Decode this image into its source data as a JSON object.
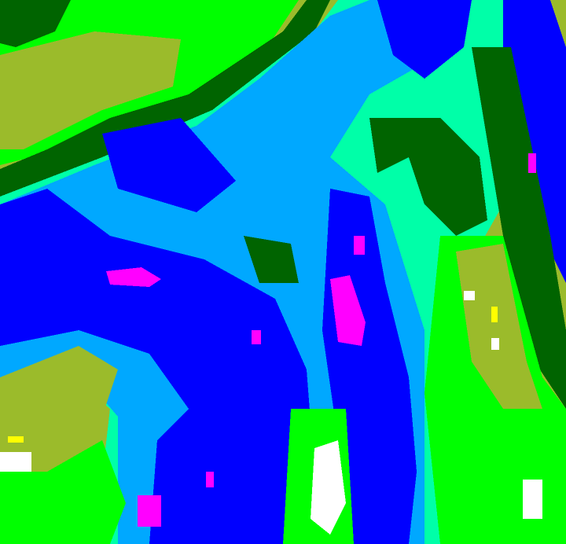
{
  "map": {
    "kind": "false-color raster",
    "palette": {
      "olive": "#9bbb2b",
      "dark_green": "#006400",
      "green": "#00ff00",
      "aqua_green": "#00ffa8",
      "light_blue": "#00a8ff",
      "blue": "#0000ff",
      "magenta": "#ff00ff",
      "white": "#ffffff",
      "yellow": "#ffff00"
    }
  }
}
